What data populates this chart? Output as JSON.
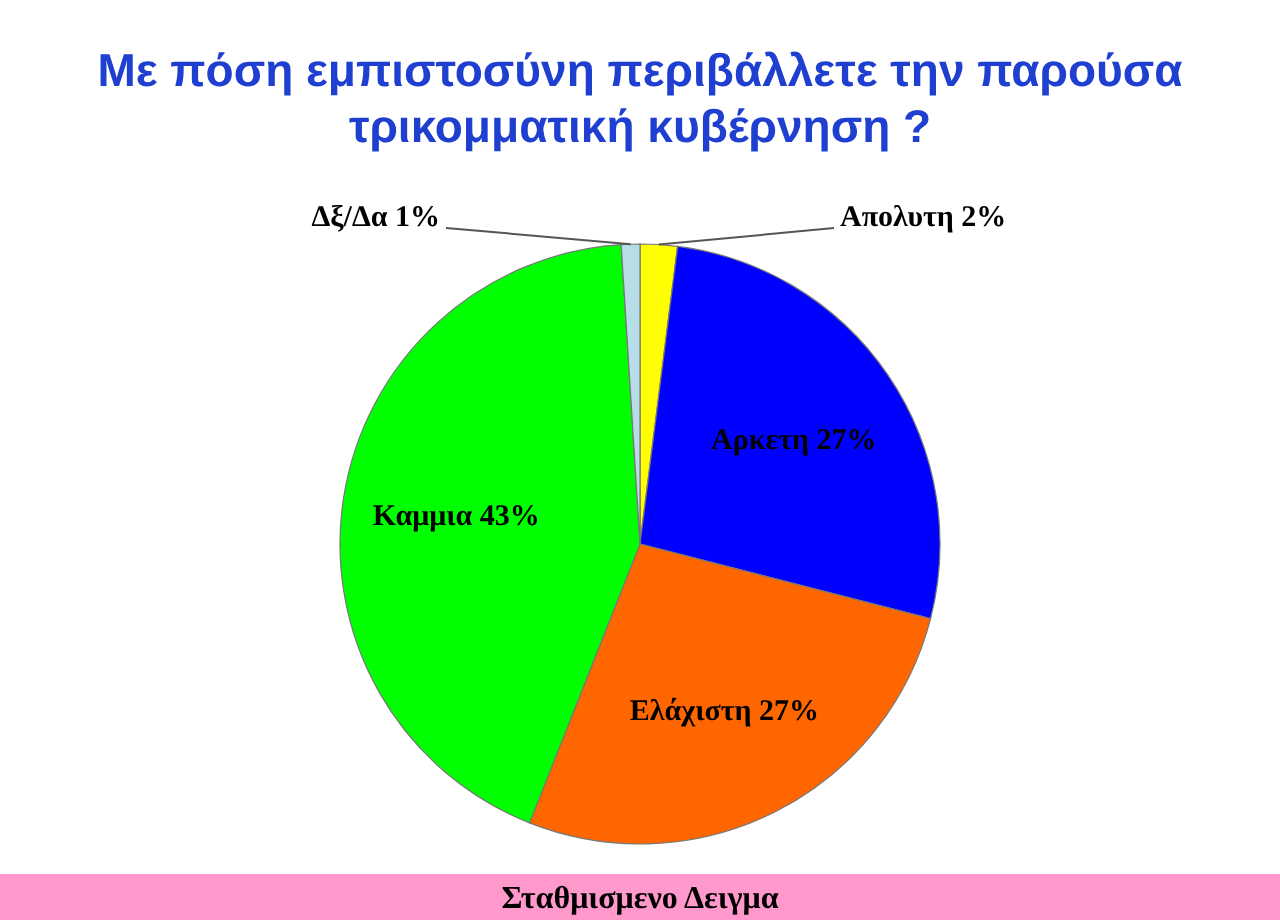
{
  "chart_data": {
    "type": "pie",
    "title": "Με πόση εμπιστοσύνη περιβάλλετε την παρούσα τρικομματική κυβέρνηση ?",
    "categories": [
      "Απολυτη",
      "Αρκετη",
      "Ελάχιστη",
      "Καμμια",
      "Δξ/Δα"
    ],
    "values": [
      2,
      27,
      27,
      43,
      1
    ],
    "colors": [
      "#ffff00",
      "#0000ff",
      "#ff6600",
      "#00ff00",
      "#b7dde8"
    ],
    "value_labels": [
      "2%",
      "27%",
      "27%",
      "43%",
      "1%"
    ],
    "annotations": [
      "Σταθμισμενο Δειγμα"
    ]
  }
}
